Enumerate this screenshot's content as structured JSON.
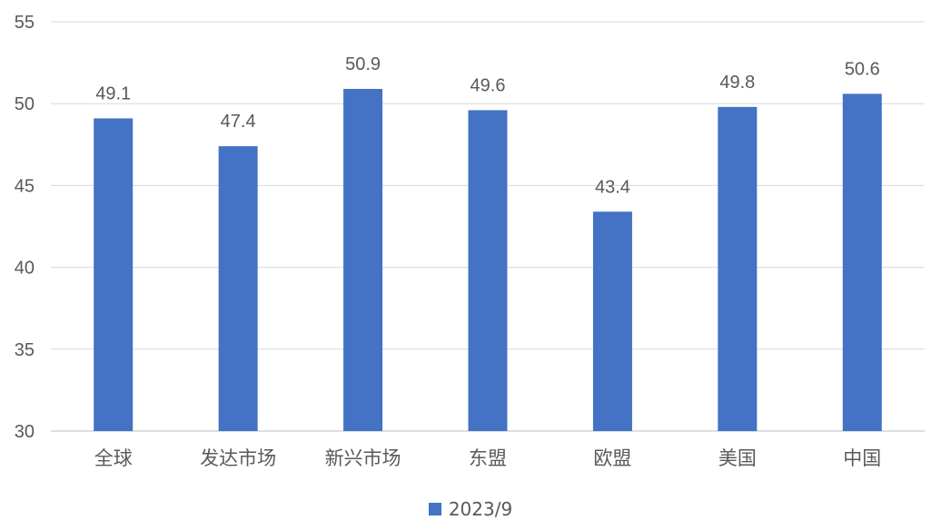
{
  "chart_data": {
    "type": "bar",
    "categories": [
      "全球",
      "发达市场",
      "新兴市场",
      "东盟",
      "欧盟",
      "美国",
      "中国"
    ],
    "series": [
      {
        "name": "2023/9",
        "values": [
          49.1,
          47.4,
          50.9,
          49.6,
          43.4,
          49.8,
          50.6
        ]
      }
    ],
    "ylim": [
      30,
      55
    ],
    "yticks": [
      30,
      35,
      40,
      45,
      50,
      55
    ],
    "grid": true,
    "legend_position": "bottom",
    "data_labels": true
  },
  "colors": {
    "bar": "#4472C4",
    "grid": "#D9D9D9",
    "text": "#595959",
    "axis": "#BFBFBF"
  }
}
